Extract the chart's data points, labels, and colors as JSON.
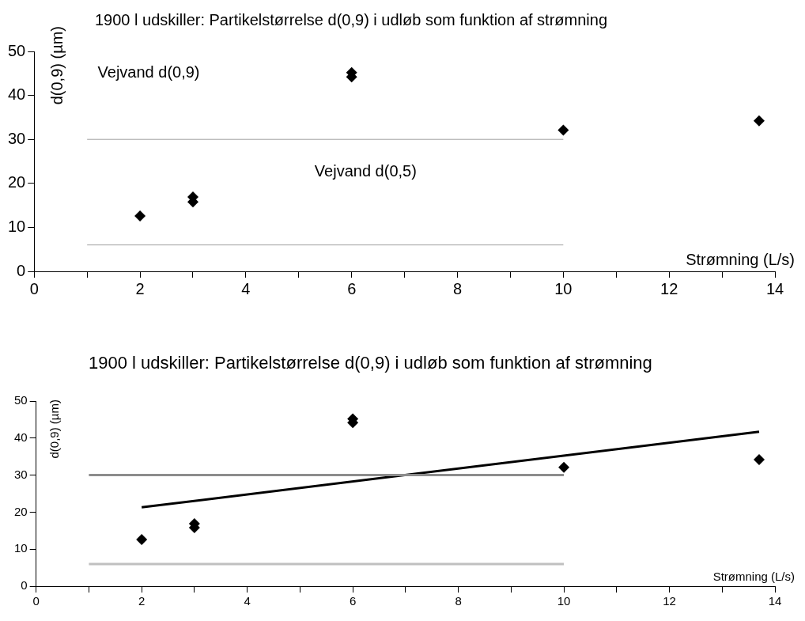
{
  "chart_data": [
    {
      "type": "scatter",
      "title": "1900 l udskiller: Partikelstørrelse d(0,9) i udløb som funktion af strømning",
      "xlabel": "Strømning (L/s)",
      "ylabel": "d(0,9) (µm)",
      "xlim": [
        0,
        14
      ],
      "ylim": [
        0,
        50
      ],
      "xticks": [
        0,
        {
          "value": 1,
          "label": null
        },
        2,
        {
          "value": 3,
          "label": null
        },
        4,
        {
          "value": 5,
          "label": null
        },
        6,
        {
          "value": 7,
          "label": null
        },
        8,
        {
          "value": 9,
          "label": null
        },
        10,
        {
          "value": 11,
          "label": null
        },
        12,
        {
          "value": 13,
          "label": null
        },
        14
      ],
      "yticks": [
        0,
        10,
        20,
        30,
        40,
        50
      ],
      "grid": false,
      "legend": false,
      "series": [
        {
          "marker": "diamond",
          "color": "#000000",
          "x": [
            2,
            3,
            3,
            6,
            6,
            10,
            13.7
          ],
          "values": [
            12.6,
            16.9,
            15.8,
            45.2,
            44.2,
            32.1,
            34.2
          ]
        },
        {
          "type": "line",
          "marker": "none",
          "color": "#a0a0a0",
          "x": [
            1,
            10
          ],
          "values": [
            30,
            30
          ]
        },
        {
          "type": "line",
          "marker": "none",
          "color": "#a0a0a0",
          "x": [
            1,
            10
          ],
          "values": [
            6,
            6
          ]
        }
      ],
      "annotations": [
        "Vejvand d(0,9)",
        "Vejvand d(0,5)"
      ]
    },
    {
      "type": "scatter",
      "title": "1900 l udskiller: Partikelstørrelse d(0,9) i udløb som funktion af strømning",
      "xlabel": "Strømning (L/s)",
      "ylabel": "d(0,9) (µm)",
      "xlim": [
        0,
        14
      ],
      "ylim": [
        0,
        50
      ],
      "xticks": [
        0,
        {
          "value": 1,
          "label": null
        },
        2,
        {
          "value": 3,
          "label": null
        },
        4,
        {
          "value": 5,
          "label": null
        },
        6,
        {
          "value": 7,
          "label": null
        },
        8,
        {
          "value": 9,
          "label": null
        },
        10,
        {
          "value": 11,
          "label": null
        },
        12,
        {
          "value": 13,
          "label": null
        },
        14
      ],
      "yticks": [
        0,
        10,
        20,
        30,
        40,
        50
      ],
      "grid": false,
      "legend": false,
      "series": [
        {
          "marker": "diamond",
          "color": "#000000",
          "x": [
            2,
            3,
            3,
            6,
            6,
            10,
            13.7
          ],
          "values": [
            12.6,
            16.9,
            15.8,
            45.2,
            44.2,
            32.1,
            34.2
          ]
        },
        {
          "type": "line",
          "marker": "none",
          "color": "#8c8c8c",
          "x": [
            1,
            10
          ],
          "values": [
            30,
            30
          ]
        },
        {
          "type": "line",
          "marker": "none",
          "color": "#c0c0c0",
          "x": [
            1,
            10
          ],
          "values": [
            6,
            6
          ]
        },
        {
          "type": "line",
          "marker": "none",
          "color": "#000000",
          "x": [
            2,
            13.7
          ],
          "values": [
            21.3,
            41.7
          ]
        }
      ]
    }
  ]
}
